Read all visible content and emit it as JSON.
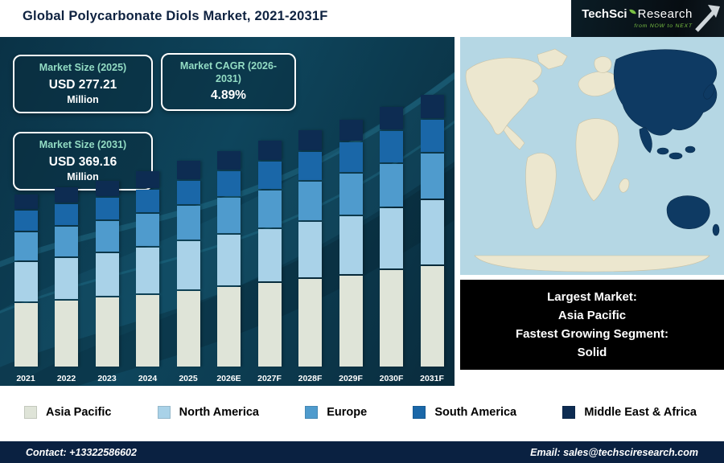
{
  "header": {
    "title": "Global Polycarbonate Diols Market, 2021-2031F",
    "logo": {
      "brand_primary": "TechSci",
      "brand_secondary": "Research",
      "tagline": "from NOW to NEXT"
    }
  },
  "info_boxes": {
    "size_2025": {
      "label": "Market Size (2025)",
      "value": "USD 277.21",
      "unit": "Million"
    },
    "cagr": {
      "label": "Market CAGR (2026-2031)",
      "value": "4.89%"
    },
    "size_2031": {
      "label": "Market Size (2031)",
      "value": "USD 369.16",
      "unit": "Million"
    }
  },
  "chart_data": {
    "type": "bar",
    "stacked": true,
    "title": "Global Polycarbonate Diols Market, 2021-2031F",
    "value_unit": "USD Million",
    "categories": [
      "2021",
      "2022",
      "2023",
      "2024",
      "2025",
      "2026E",
      "2027F",
      "2028F",
      "2029F",
      "2030F",
      "2031F"
    ],
    "series": [
      {
        "name": "Asia Pacific",
        "color": "#dfe4d8",
        "values": [
          88,
          92,
          96,
          100,
          105,
          111,
          116,
          122,
          127,
          134,
          140
        ]
      },
      {
        "name": "North America",
        "color": "#a9d2e8",
        "values": [
          55,
          57,
          60,
          63,
          67,
          70,
          73,
          77,
          80,
          84,
          89
        ]
      },
      {
        "name": "Europe",
        "color": "#4f9bcd",
        "values": [
          39,
          41,
          42,
          45,
          47,
          49,
          52,
          54,
          57,
          60,
          63
        ]
      },
      {
        "name": "South America",
        "color": "#1a67a8",
        "values": [
          28,
          29,
          30,
          32,
          33,
          35,
          37,
          39,
          41,
          43,
          45
        ]
      },
      {
        "name": "Middle East & Africa",
        "color": "#0d2c52",
        "values": [
          20,
          21,
          22,
          23,
          25.21,
          26,
          27,
          28,
          30,
          31,
          32.16
        ]
      }
    ],
    "totals_labeled": {
      "2025": 277.21,
      "2031": 369.16
    },
    "ylim": [
      0,
      400
    ],
    "legend_position": "bottom",
    "grid": false
  },
  "map": {
    "ocean_color": "#b5d7e4",
    "land_color": "#ece7cf",
    "highlight_color": "#0e3a63",
    "highlighted_region": "Asia Pacific"
  },
  "callout": {
    "lines": [
      "Largest Market:",
      "Asia Pacific",
      "Fastest Growing Segment:",
      "Solid"
    ]
  },
  "footer": {
    "contact": "Contact: +13322586602",
    "email": "Email: sales@techsciresearch.com"
  }
}
